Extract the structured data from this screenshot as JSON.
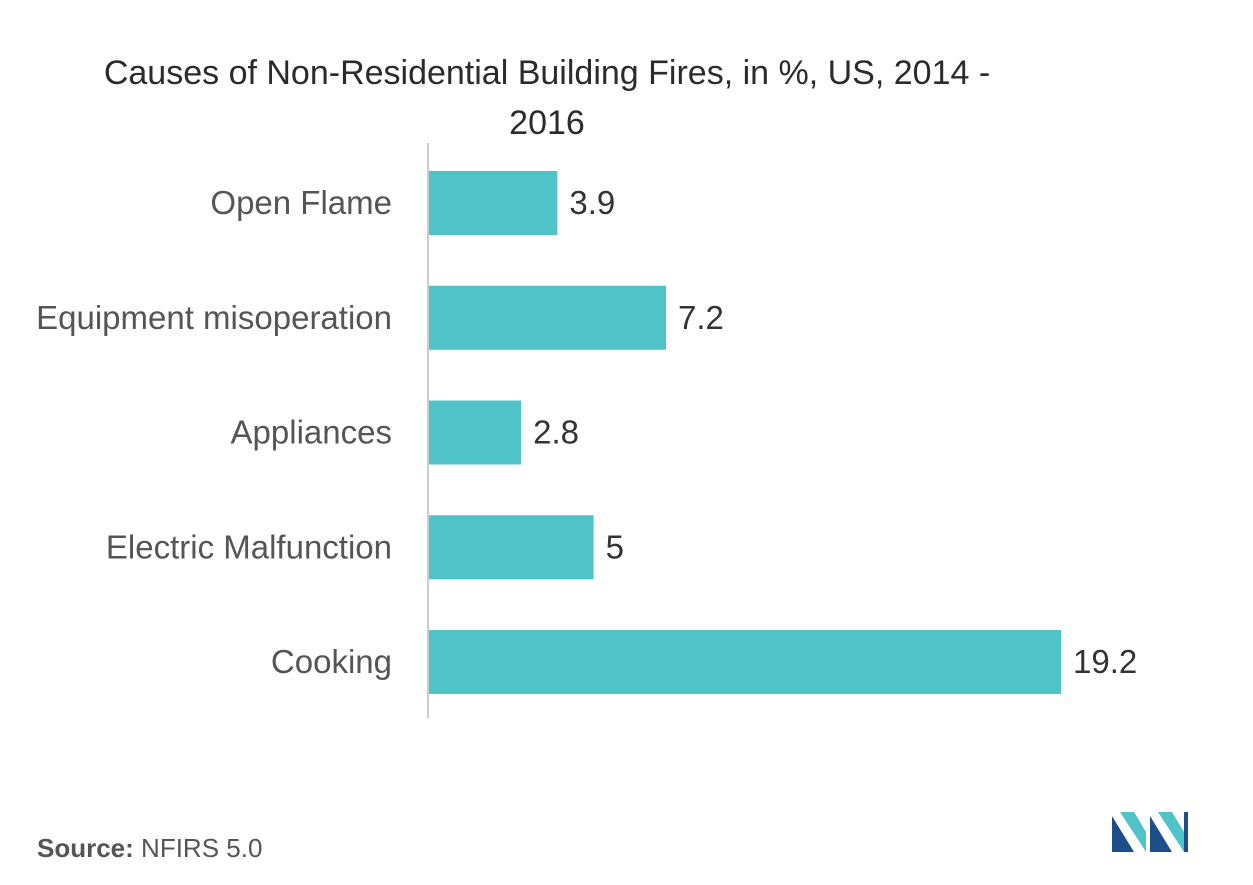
{
  "chart_data": {
    "type": "bar",
    "orientation": "horizontal",
    "title_line1": "Causes of Non-Residential Building Fires, in  %, US, 2014 -",
    "title_line2": "2016",
    "categories": [
      "Open Flame",
      "Equipment misoperation",
      "Appliances",
      "Electric Malfunction",
      "Cooking"
    ],
    "values": [
      3.9,
      7.2,
      2.8,
      5,
      19.2
    ],
    "value_labels": [
      "3.9",
      "7.2",
      "2.8",
      "5",
      "19.2"
    ],
    "xlim": [
      0,
      20
    ],
    "grid": false,
    "bar_color": "#4fc3c8",
    "axis_color": "#cccccc"
  },
  "source": {
    "label": "Source:",
    "text": "NFIRS 5.0"
  },
  "logo": {
    "icon": "mordor-intelligence-logo",
    "colors": [
      "#1d4e89",
      "#4fc3c8"
    ]
  }
}
